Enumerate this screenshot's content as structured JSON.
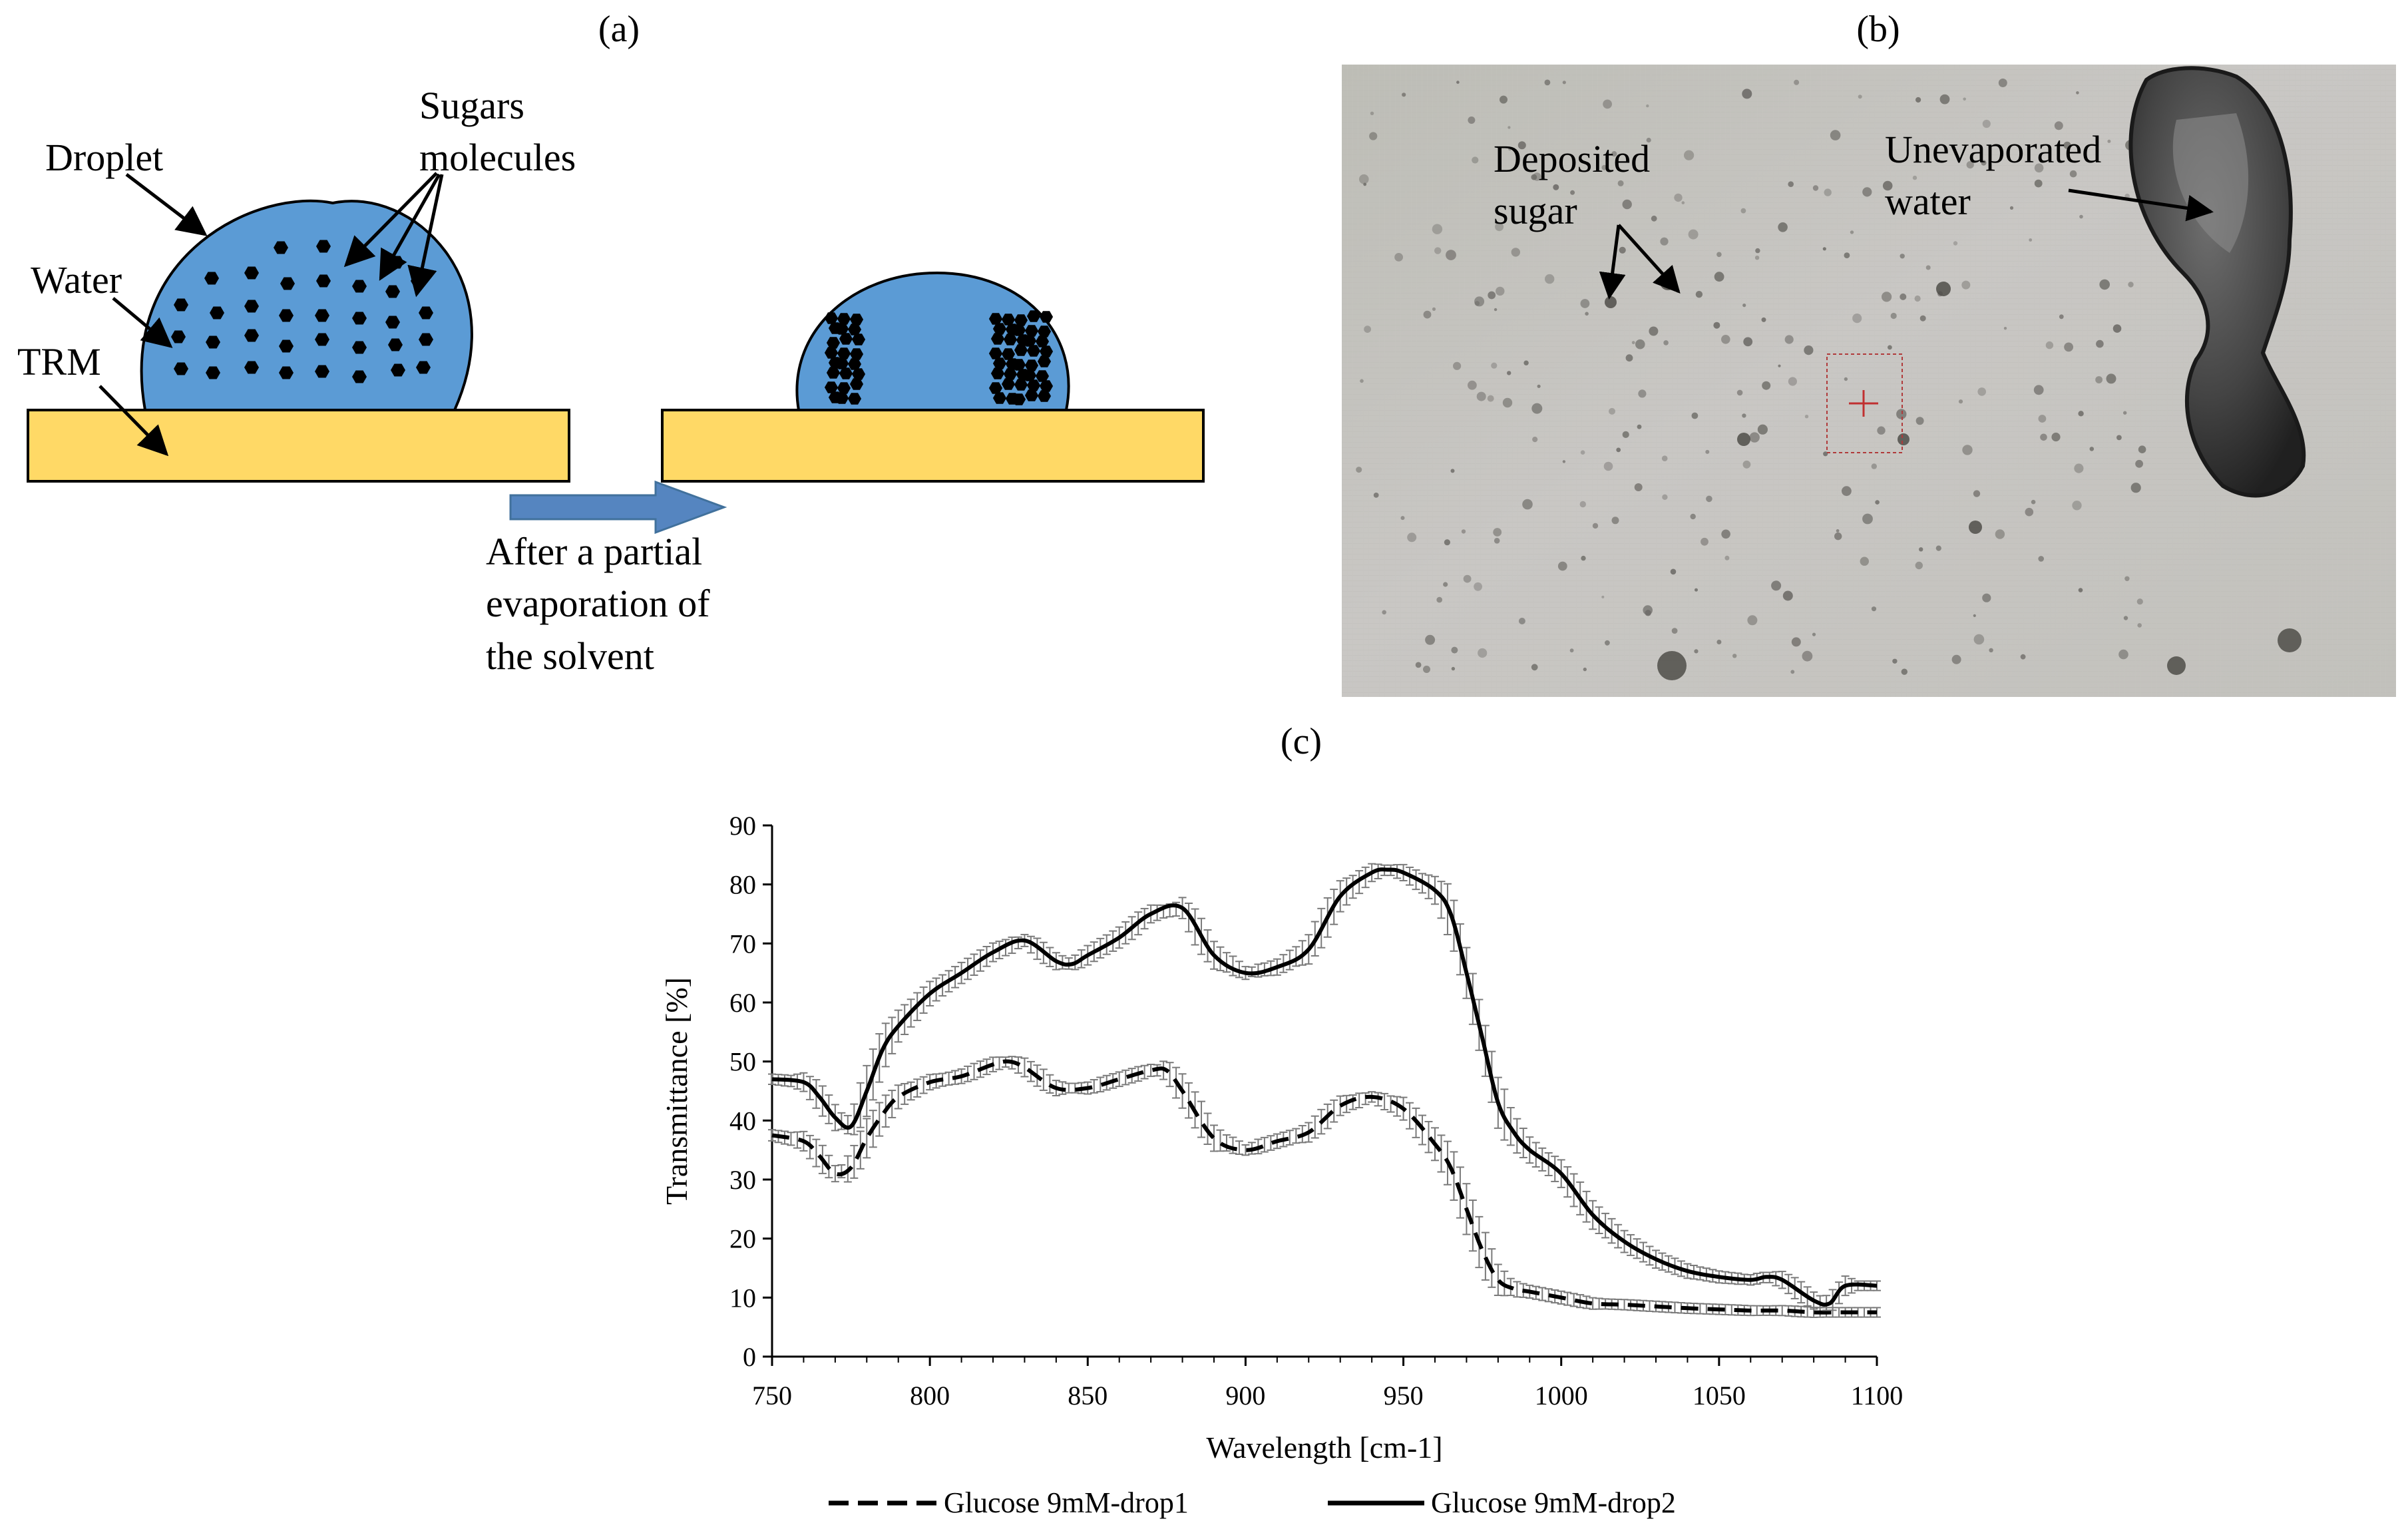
{
  "panel_a": {
    "label": "(a)",
    "droplet": "Droplet",
    "sugars_line1": "Sugars",
    "sugars_line2": "molecules",
    "water": "Water",
    "trm": "TRM",
    "caption_line1": "After a partial",
    "caption_line2": "evaporation of",
    "caption_line3": "the solvent",
    "colors": {
      "water": "#5b9bd5",
      "substrate": "#ffd966",
      "arrow": "#5585c0"
    }
  },
  "panel_b": {
    "label": "(b)",
    "deposited_line1": "Deposited",
    "deposited_line2": "sugar",
    "unevap_line1": "Unevaporated",
    "unevap_line2": "water"
  },
  "panel_c": {
    "label": "(c)"
  },
  "chart_data": {
    "type": "line",
    "title": "",
    "xlabel": "Wavelength [cm-1]",
    "ylabel": "Transmittance [%]",
    "xlim": [
      750,
      1100
    ],
    "ylim": [
      0,
      90
    ],
    "xticks": [
      750,
      800,
      850,
      900,
      950,
      1000,
      1050,
      1100
    ],
    "yticks": [
      0,
      10,
      20,
      30,
      40,
      50,
      60,
      70,
      80,
      90
    ],
    "grid": false,
    "legend_position": "bottom",
    "series": [
      {
        "name": "Glucose 9mM-drop1",
        "style": "dashed",
        "color": "#000000",
        "x": [
          750,
          760,
          765,
          770,
          775,
          780,
          785,
          790,
          800,
          810,
          820,
          825,
          830,
          840,
          850,
          860,
          870,
          875,
          880,
          890,
          900,
          910,
          920,
          930,
          940,
          950,
          960,
          965,
          970,
          975,
          980,
          985,
          990,
          1000,
          1010,
          1020,
          1030,
          1040,
          1050,
          1060,
          1070,
          1080,
          1090,
          1100
        ],
        "values": [
          37.5,
          36.5,
          34,
          31,
          32,
          37,
          41,
          44,
          46.5,
          47.5,
          49.5,
          50,
          49,
          45.5,
          45.5,
          47,
          48.5,
          48.5,
          45,
          37,
          35,
          36.5,
          38,
          42.5,
          44,
          42,
          36,
          32,
          25,
          18,
          13,
          11.5,
          11,
          10,
          9,
          8.8,
          8.5,
          8.2,
          8,
          7.8,
          7.8,
          7.5,
          7.5,
          7.5
        ]
      },
      {
        "name": "Glucose 9mM-drop2",
        "style": "solid",
        "color": "#000000",
        "x": [
          750,
          760,
          765,
          770,
          775,
          780,
          785,
          790,
          800,
          810,
          820,
          830,
          840,
          845,
          850,
          860,
          870,
          880,
          890,
          900,
          910,
          920,
          930,
          940,
          945,
          950,
          960,
          965,
          970,
          975,
          980,
          985,
          990,
          1000,
          1010,
          1020,
          1030,
          1040,
          1050,
          1060,
          1065,
          1070,
          1080,
          1085,
          1090,
          1100
        ],
        "values": [
          47,
          46.5,
          44,
          40.5,
          39,
          45,
          52,
          56,
          61.5,
          65,
          68.5,
          70.5,
          67,
          66.5,
          68,
          71,
          75,
          76,
          68,
          65,
          66,
          69,
          78,
          82,
          82.5,
          82,
          79,
          75,
          65,
          54,
          43,
          38,
          35,
          31,
          24,
          19.5,
          16.5,
          14.5,
          13.5,
          13,
          13.5,
          13,
          9.5,
          9,
          12,
          12
        ]
      }
    ]
  }
}
